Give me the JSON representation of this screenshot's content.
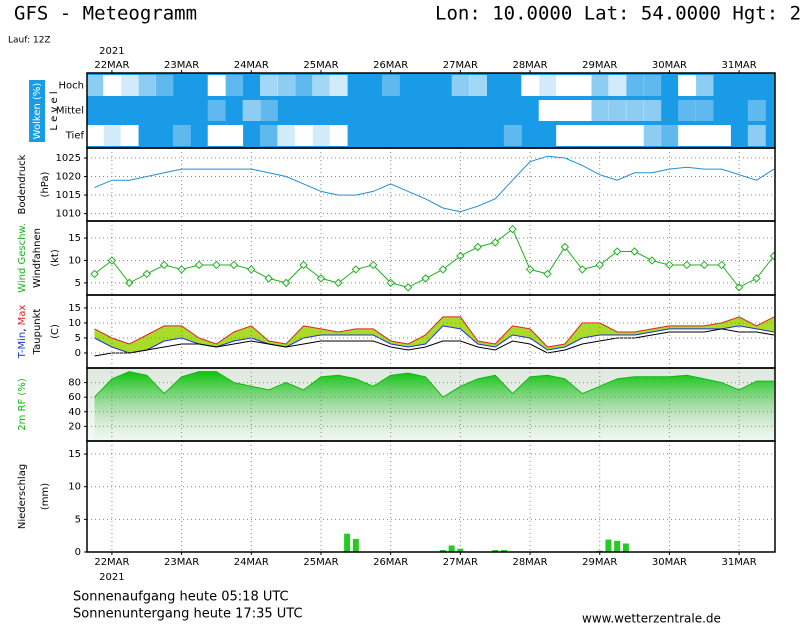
{
  "header": {
    "title": "GFS - Meteogramm",
    "location": "Lon: 10.0000 Lat: 54.0000 Hgt: 2",
    "run": "Lauf: 12Z"
  },
  "time_axis": {
    "x": [
      -1,
      0,
      1,
      2,
      3,
      4,
      5,
      6,
      7,
      8,
      9,
      10,
      11,
      12,
      13,
      14,
      15,
      16,
      17,
      18,
      19,
      20,
      21,
      22,
      23,
      24,
      25,
      26,
      27,
      28,
      29,
      30,
      31,
      32,
      33,
      34,
      35,
      36,
      37,
      38
    ],
    "xlim": [
      -1.43,
      38.06
    ],
    "year": "2021",
    "xticks": [
      {
        "value": 0,
        "label": "22MAR"
      },
      {
        "value": 4,
        "label": "23MAR"
      },
      {
        "value": 8,
        "label": "24MAR"
      },
      {
        "value": 12,
        "label": "25MAR"
      },
      {
        "value": 16,
        "label": "26MAR"
      },
      {
        "value": 20,
        "label": "27MAR"
      },
      {
        "value": 24,
        "label": "28MAR"
      },
      {
        "value": 28,
        "label": "29MAR"
      },
      {
        "value": 32,
        "label": "30MAR"
      },
      {
        "value": 36,
        "label": "31MAR"
      }
    ]
  },
  "chart_data": [
    {
      "type": "heatmap",
      "ylabel": "Wolken (%)",
      "level_label": "L e v e l",
      "background": "#1a9be8",
      "color": "#ffffff",
      "zlim": [
        0,
        100
      ],
      "series": [
        {
          "name": "Hoch",
          "values": [
            50,
            100,
            80,
            50,
            30,
            0,
            0,
            100,
            30,
            0,
            60,
            50,
            30,
            60,
            80,
            0,
            0,
            30,
            0,
            0,
            0,
            50,
            60,
            0,
            0,
            100,
            80,
            100,
            100,
            50,
            80,
            30,
            30,
            0,
            100,
            50,
            0,
            0,
            0,
            0
          ]
        },
        {
          "name": "Mittel",
          "values": [
            0,
            0,
            0,
            0,
            0,
            0,
            0,
            30,
            0,
            50,
            30,
            0,
            0,
            0,
            0,
            0,
            0,
            0,
            0,
            0,
            0,
            0,
            0,
            0,
            0,
            0,
            100,
            100,
            100,
            50,
            50,
            50,
            50,
            0,
            30,
            30,
            0,
            0,
            30,
            0
          ]
        },
        {
          "name": "Tief",
          "values": [
            100,
            80,
            100,
            0,
            0,
            30,
            0,
            100,
            100,
            0,
            30,
            80,
            100,
            80,
            100,
            0,
            0,
            0,
            0,
            0,
            0,
            0,
            0,
            0,
            30,
            0,
            0,
            100,
            100,
            100,
            100,
            100,
            50,
            30,
            100,
            100,
            100,
            0,
            50,
            0
          ]
        }
      ]
    },
    {
      "type": "line",
      "ylabel": "Bodendruck",
      "unit": "(hPa)",
      "ylim": [
        1008,
        1027.7
      ],
      "yticks": [
        1010,
        1015,
        1020,
        1025
      ],
      "grid": true,
      "series": [
        {
          "color": "#1e8fd6",
          "values": [
            1017,
            1019,
            1019,
            1020,
            1021,
            1022,
            1022,
            1022,
            1022,
            1022,
            1021,
            1020,
            1018,
            1016,
            1015,
            1015,
            1016,
            1018,
            1016,
            1014,
            1011.5,
            1010.5,
            1012,
            1014,
            1019,
            1024,
            1025.5,
            1025,
            1023,
            1020.5,
            1019,
            1021,
            1021,
            1022,
            1022.5,
            1022,
            1022,
            1020.5,
            1019,
            1022
          ]
        }
      ]
    },
    {
      "type": "line",
      "barbs_label": "Windfahnen",
      "unit": "(kt)",
      "ylim": [
        2.3,
        18.8
      ],
      "yticks": [
        5,
        10,
        15
      ],
      "grid": true,
      "markers": "diamond",
      "series": [
        {
          "name": "Wind Geschw.",
          "color": "#20b020",
          "values": [
            7,
            10,
            5,
            7,
            9,
            8,
            9,
            9,
            9,
            8,
            6,
            5,
            9,
            6,
            5,
            8,
            9,
            5,
            4,
            6,
            8,
            11,
            13,
            14,
            17,
            8,
            7,
            13,
            8,
            9,
            12,
            12,
            10,
            9,
            9,
            9,
            9,
            4,
            6,
            11
          ]
        }
      ]
    },
    {
      "type": "line",
      "unit": "(C)",
      "ylim": [
        -5,
        19.3
      ],
      "yticks": [
        0,
        5,
        10,
        15
      ],
      "grid": true,
      "fill_between": [
        0,
        1
      ],
      "fill_color": "#a8dc28",
      "name_separator": ", ",
      "series": [
        {
          "name": "Max",
          "color": "#e82020",
          "values": [
            8,
            5,
            3,
            6,
            9,
            9,
            5,
            3,
            7,
            9,
            4,
            3,
            9,
            8,
            7,
            8,
            8,
            4,
            3,
            6,
            12,
            12,
            4,
            3,
            9,
            8,
            2,
            3,
            10,
            10,
            7,
            7,
            8,
            9,
            9,
            9,
            10,
            12,
            9,
            12
          ]
        },
        {
          "name": "T-Min",
          "color": "#2030e0",
          "values": [
            5,
            2,
            0,
            1,
            4,
            5,
            3,
            2,
            4,
            5,
            3,
            2,
            5,
            6,
            6,
            6,
            6,
            3,
            2,
            3,
            9,
            8,
            3,
            2,
            6,
            5,
            1,
            2,
            5,
            6,
            6,
            6,
            7,
            8,
            8,
            8,
            8,
            9,
            8,
            7
          ]
        },
        {
          "name": "Taupunkt",
          "color": "#000000",
          "values": [
            -1,
            0,
            0,
            1,
            2,
            3,
            3,
            2,
            3,
            4,
            3,
            2,
            3,
            4,
            4,
            4,
            4,
            2,
            1,
            2,
            4,
            4,
            2,
            1,
            4,
            3,
            0,
            1,
            3,
            4,
            5,
            5,
            6,
            7,
            7,
            7,
            8,
            7,
            7,
            6
          ]
        }
      ]
    },
    {
      "type": "area",
      "ylim": [
        0,
        100
      ],
      "yticks": [
        20,
        40,
        60,
        80
      ],
      "grid": true,
      "series": [
        {
          "name": "2m RF (%)",
          "color": "#10b810",
          "values": [
            60,
            85,
            95,
            90,
            65,
            88,
            95,
            95,
            80,
            75,
            70,
            80,
            70,
            88,
            90,
            85,
            75,
            90,
            93,
            88,
            60,
            75,
            85,
            90,
            65,
            88,
            90,
            85,
            65,
            75,
            85,
            88,
            88,
            88,
            90,
            85,
            80,
            70,
            82,
            82
          ]
        }
      ]
    },
    {
      "type": "bar",
      "ylabel": "Niederschlag",
      "unit": "(mm)",
      "x": [
        13.5,
        14,
        19,
        19.5,
        20,
        22,
        22.5,
        28,
        28.5,
        29,
        29.5
      ],
      "ylim": [
        0,
        17
      ],
      "yticks": [
        0,
        5,
        10,
        15
      ],
      "grid": true,
      "series": [
        {
          "color": "#22cc22",
          "values": [
            2.8,
            2.0,
            0.3,
            1.0,
            0.5,
            0.3,
            0.3,
            0.2,
            1.9,
            1.7,
            1.3
          ]
        }
      ]
    }
  ],
  "footer": {
    "sunrise": "Sonnenaufgang heute 05:18 UTC",
    "sunset": "Sonnenuntergang heute 17:35 UTC",
    "source": "www.wetterzentrale.de"
  }
}
